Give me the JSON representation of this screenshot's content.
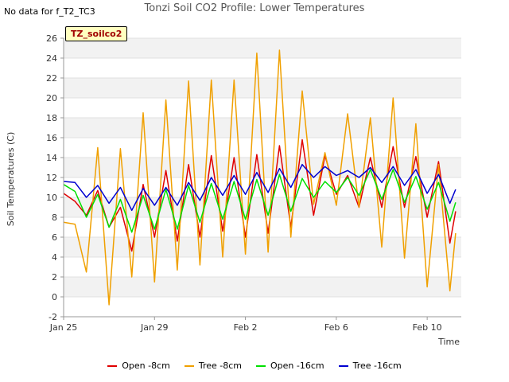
{
  "corner_note": "No data for f_T2_TC3",
  "badge": "TZ_soilco2",
  "chart_data": {
    "type": "line",
    "title": "Tonzi Soil CO2 Profile: Lower Temperatures",
    "xlabel": "Time",
    "ylabel": "Soil Temperatures (C)",
    "ylim": [
      -2,
      26
    ],
    "yticks": [
      -2,
      0,
      2,
      4,
      6,
      8,
      10,
      12,
      14,
      16,
      18,
      20,
      22,
      24,
      26
    ],
    "xlim": [
      "Jan 25",
      "Feb 11 12:00"
    ],
    "xticks": [
      "Jan 25",
      "Jan 29",
      "Feb 2",
      "Feb 6",
      "Feb 10"
    ],
    "grid": "horizontal bands",
    "legend_position": "bottom",
    "x": [
      "Jan 25 00:00",
      "Jan 25 12:00",
      "Jan 26 00:00",
      "Jan 26 12:00",
      "Jan 27 00:00",
      "Jan 27 12:00",
      "Jan 28 00:00",
      "Jan 28 12:00",
      "Jan 29 00:00",
      "Jan 29 12:00",
      "Jan 30 00:00",
      "Jan 30 12:00",
      "Jan 31 00:00",
      "Jan 31 12:00",
      "Feb 1 00:00",
      "Feb 1 12:00",
      "Feb 2 00:00",
      "Feb 2 12:00",
      "Feb 3 00:00",
      "Feb 3 12:00",
      "Feb 4 00:00",
      "Feb 4 12:00",
      "Feb 5 00:00",
      "Feb 5 12:00",
      "Feb 6 00:00",
      "Feb 6 12:00",
      "Feb 7 00:00",
      "Feb 7 12:00",
      "Feb 8 00:00",
      "Feb 8 12:00",
      "Feb 9 00:00",
      "Feb 9 12:00",
      "Feb 10 00:00",
      "Feb 10 12:00",
      "Feb 11 00:00",
      "Feb 11 06:00"
    ],
    "series": [
      {
        "name": "Open -8cm",
        "color": "#e00000",
        "values": [
          10.4,
          9.6,
          8.2,
          10.7,
          7.0,
          9.0,
          4.6,
          11.3,
          6.0,
          12.7,
          5.6,
          13.3,
          6.0,
          14.2,
          6.6,
          14.0,
          6.0,
          14.3,
          6.4,
          15.2,
          7.0,
          15.8,
          8.2,
          14.2,
          10.3,
          12.2,
          9.0,
          14.0,
          9.0,
          15.1,
          9.0,
          14.1,
          8.0,
          13.6,
          5.4,
          8.6
        ]
      },
      {
        "name": "Tree -8cm",
        "color": "#f0a000",
        "values": [
          7.5,
          7.3,
          2.5,
          15.0,
          -0.8,
          14.9,
          2.0,
          18.5,
          1.5,
          19.8,
          2.7,
          21.7,
          3.2,
          21.8,
          4.0,
          21.8,
          4.3,
          24.5,
          4.5,
          24.8,
          6.0,
          20.7,
          9.3,
          14.5,
          9.2,
          18.4,
          9.0,
          18.0,
          5.0,
          20.0,
          3.9,
          17.4,
          1.0,
          13.3,
          0.6,
          6.4
        ]
      },
      {
        "name": "Open -16cm",
        "color": "#00e000",
        "values": [
          11.3,
          10.6,
          8.0,
          10.3,
          7.0,
          9.8,
          6.5,
          10.2,
          6.8,
          10.8,
          6.8,
          11.2,
          7.5,
          11.4,
          7.8,
          11.6,
          7.8,
          11.8,
          8.2,
          12.3,
          8.6,
          11.9,
          10.0,
          11.6,
          10.5,
          12.0,
          10.2,
          12.8,
          9.8,
          12.8,
          9.5,
          12.1,
          8.8,
          11.5,
          7.6,
          9.5
        ]
      },
      {
        "name": "Tree -16cm",
        "color": "#0000d0",
        "values": [
          11.6,
          11.5,
          10.0,
          11.2,
          9.4,
          11.0,
          8.7,
          10.9,
          9.2,
          11.0,
          9.2,
          11.5,
          9.7,
          12.0,
          10.2,
          12.2,
          10.3,
          12.5,
          10.5,
          12.9,
          11.0,
          13.3,
          12.0,
          13.1,
          12.2,
          12.7,
          12.0,
          13.0,
          11.5,
          13.1,
          11.2,
          12.8,
          10.4,
          12.3,
          9.4,
          10.8
        ]
      }
    ]
  }
}
